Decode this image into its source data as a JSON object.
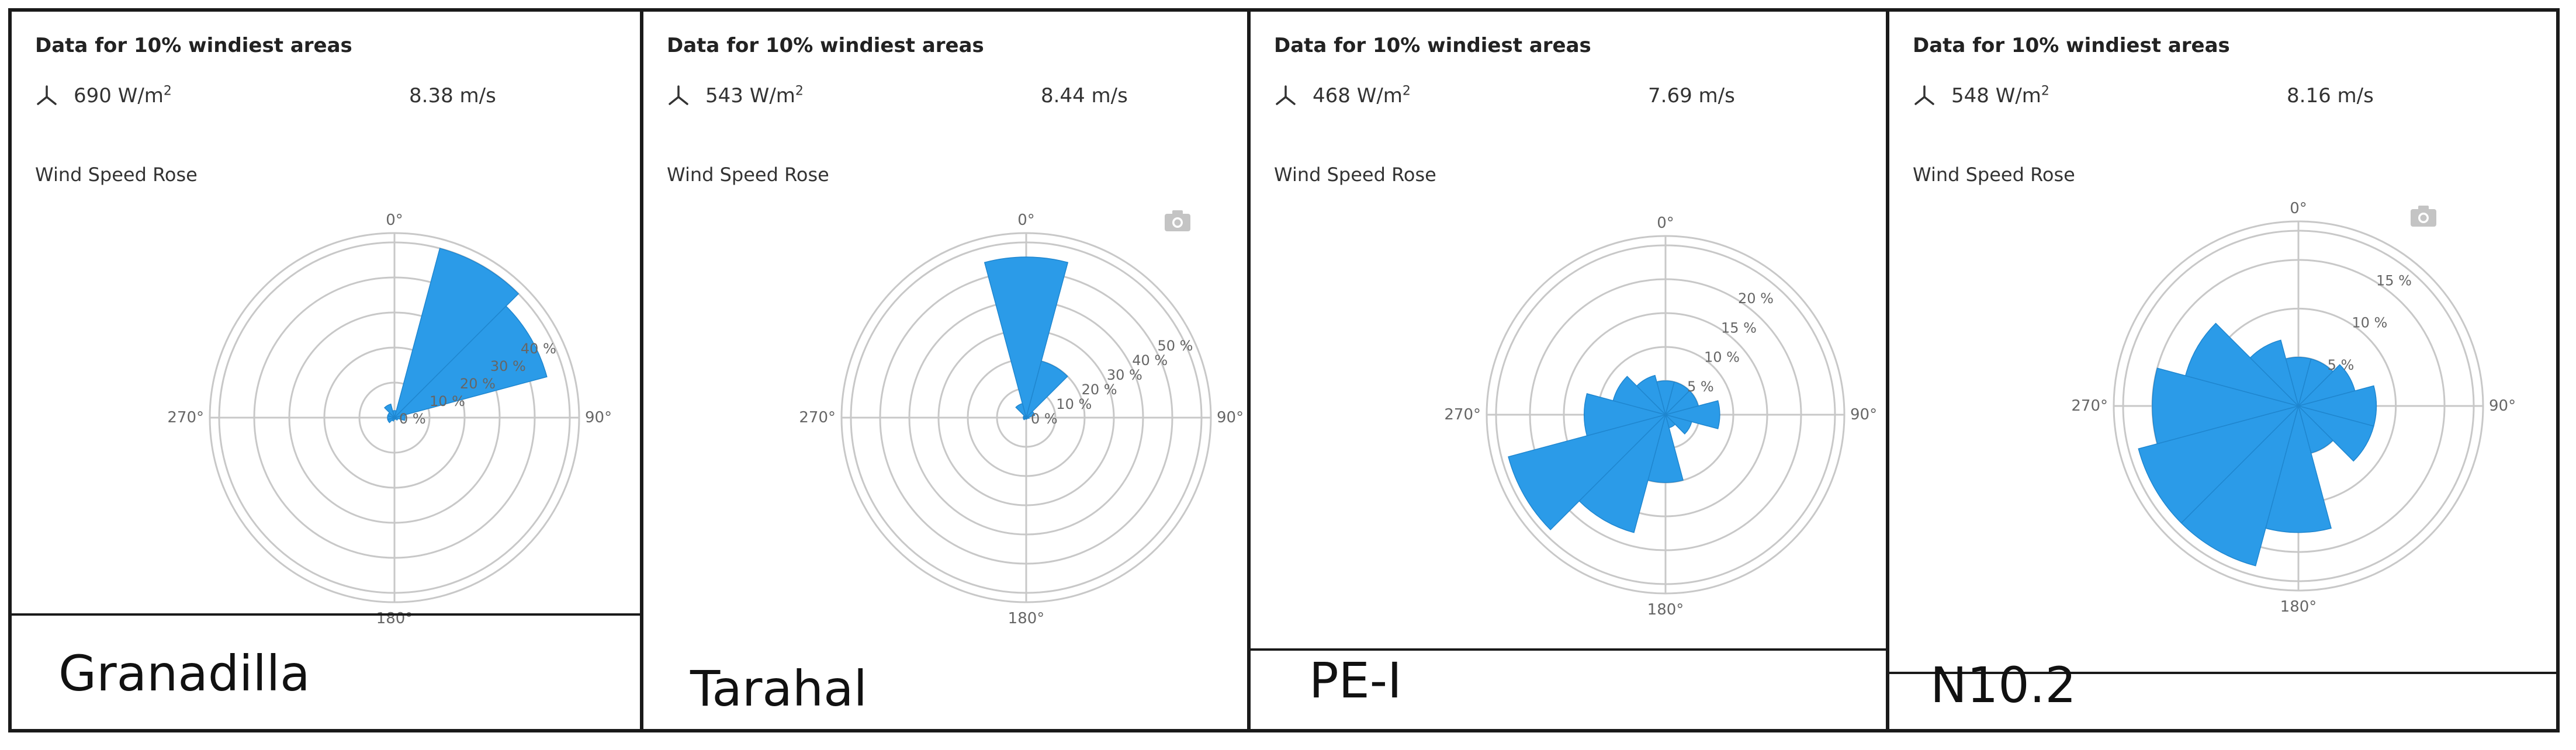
{
  "header_text": "Data for 10% windiest areas",
  "subtitle": "Wind Speed Rose",
  "direction_labels": [
    "0°",
    "90°",
    "180°",
    "270°"
  ],
  "colors": {
    "sector_fill": "#2b9be8",
    "grid": "#c8c8c8",
    "axis_text": "#666666"
  },
  "icons": {
    "turbine": "wind-turbine-icon",
    "camera": "camera-icon"
  },
  "panels": [
    {
      "site": "Granadilla",
      "power_density_value": "690 W/m",
      "power_density_exp": "2",
      "mean_speed": "8.38 m/s",
      "has_camera_icon": false
    },
    {
      "site": "Tarahal",
      "power_density_value": "543 W/m",
      "power_density_exp": "2",
      "mean_speed": "8.44 m/s",
      "has_camera_icon": true
    },
    {
      "site": "PE-I",
      "power_density_value": "468 W/m",
      "power_density_exp": "2",
      "mean_speed": "7.69 m/s",
      "has_camera_icon": false
    },
    {
      "site": "N10.2",
      "power_density_value": "548 W/m",
      "power_density_exp": "2",
      "mean_speed": "8.16 m/s",
      "has_camera_icon": true
    }
  ],
  "chart_data": [
    {
      "type": "polar-bar",
      "site": "Granadilla",
      "sector_width_deg": 30,
      "directions_deg": [
        0,
        30,
        60,
        90,
        120,
        150,
        180,
        210,
        240,
        270,
        300,
        330
      ],
      "values": [
        2,
        50,
        45,
        3,
        1,
        0.5,
        0.5,
        1,
        2,
        2,
        2,
        4
      ],
      "r_max": 50,
      "r_ticks": [
        0,
        10,
        20,
        30,
        40
      ],
      "r_tick_labels": [
        "0 %",
        "10 %",
        "20 %",
        "30 %",
        "40 %"
      ],
      "r_tick_angle_deg": 60
    },
    {
      "type": "polar-bar",
      "site": "Tarahal",
      "sector_width_deg": 30,
      "directions_deg": [
        0,
        30,
        60,
        90,
        120,
        150,
        180,
        210,
        240,
        270,
        300,
        330
      ],
      "values": [
        55,
        20,
        3,
        1,
        0.5,
        0.5,
        0.5,
        0.5,
        1,
        1,
        1,
        5
      ],
      "r_max": 60,
      "r_ticks": [
        0,
        10,
        20,
        30,
        40,
        50
      ],
      "r_tick_labels": [
        "0 %",
        "10 %",
        "20 %",
        "30 %",
        "40 %",
        "50 %"
      ],
      "r_tick_angle_deg": 60
    },
    {
      "type": "polar-bar",
      "site": "PE-I",
      "sector_width_deg": 30,
      "directions_deg": [
        0,
        30,
        60,
        90,
        120,
        150,
        180,
        210,
        240,
        270,
        300,
        330
      ],
      "values": [
        5,
        5,
        5,
        8,
        4,
        2,
        10,
        18,
        24,
        12,
        8,
        6
      ],
      "r_max": 25,
      "r_ticks": [
        5,
        10,
        15,
        20
      ],
      "r_tick_labels": [
        "5 %",
        "10 %",
        "15 %",
        "20 %"
      ],
      "r_tick_angle_deg": 30
    },
    {
      "type": "polar-bar",
      "site": "N10.2",
      "sector_width_deg": 30,
      "directions_deg": [
        0,
        30,
        60,
        90,
        120,
        150,
        180,
        210,
        240,
        270,
        300,
        330
      ],
      "values": [
        5,
        5,
        6,
        8,
        8,
        5,
        13,
        17,
        17,
        15,
        12,
        7
      ],
      "r_max": 18,
      "r_ticks": [
        5,
        10,
        15
      ],
      "r_tick_labels": [
        "5 %",
        "10 %",
        "15 %"
      ],
      "r_tick_angle_deg": 30
    }
  ]
}
